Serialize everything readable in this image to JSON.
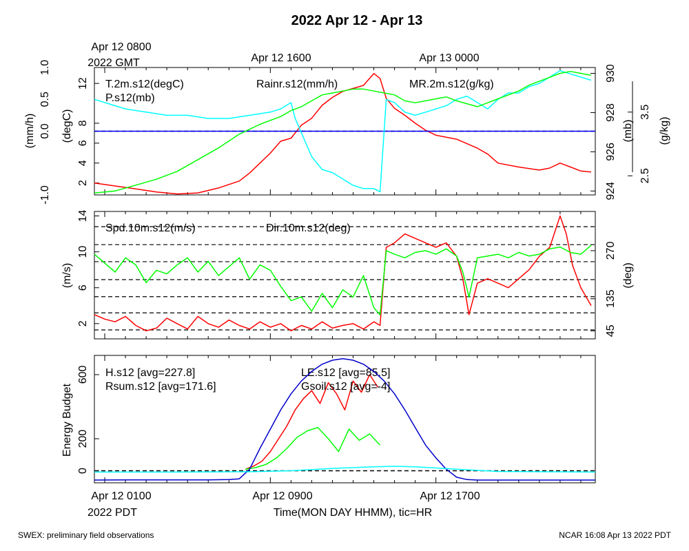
{
  "title": "2022 Apr 12 - Apr 13",
  "top_axis": {
    "labels": [
      "Apr 12 0800",
      "Apr 12 1600",
      "Apr 13 0000"
    ],
    "sublabel": "2022 GMT"
  },
  "bottom_axis": {
    "labels": [
      "Apr 12 0100",
      "Apr 12 0900",
      "Apr 12 1700"
    ],
    "sublabel": "2022 PDT",
    "title": "Time(MON DAY HHMM), tic=HR"
  },
  "footer": {
    "left": "SWEX: preliminary field observations",
    "right": "NCAR 16:08 Apr 13 2022 PDT"
  },
  "chart_data": [
    {
      "type": "line",
      "panel": "top",
      "x_unit": "hours since Apr 12 0000 PDT",
      "xlim": [
        0.5,
        24.7
      ],
      "axes": {
        "rain": {
          "label": "(mm/h)",
          "ylim": [
            -1.0,
            1.0
          ],
          "ticks": [
            -1.0,
            0.0,
            0.5,
            1.0
          ],
          "tick_labels": [
            "-1.0",
            "0.0",
            "0.5",
            "1.0"
          ]
        },
        "temp": {
          "label": "(degC)",
          "ylim": [
            0.8,
            13.6
          ],
          "ticks": [
            2,
            4,
            6,
            8,
            12
          ],
          "tick_labels": [
            "2",
            "4",
            "6",
            "8",
            "12"
          ]
        },
        "pres": {
          "label": "(mb)",
          "ylim": [
            923.8,
            930.3
          ],
          "ticks": [
            924,
            926,
            928,
            930
          ],
          "tick_labels": [
            "924",
            "926",
            "928",
            "930"
          ]
        },
        "mr": {
          "label": "(g/kg)",
          "ylim": [
            2.2,
            4.2
          ],
          "ticks": [
            2.5,
            3.5
          ],
          "tick_labels": [
            "2.5",
            "3.5"
          ]
        }
      },
      "series": [
        {
          "name": "T.2m.s12(degC)",
          "color": "#ff0000",
          "axis": "temp",
          "x": [
            0.5,
            1.5,
            2.5,
            3.5,
            4.5,
            5.5,
            6.5,
            7.5,
            8.0,
            8.5,
            9.0,
            9.5,
            10.0,
            10.5,
            11.0,
            11.5,
            12.0,
            12.5,
            13.0,
            13.5,
            14.0,
            14.3,
            14.6,
            15.0,
            15.5,
            16.0,
            16.5,
            17.0,
            18.0,
            19.0,
            19.5,
            20.0,
            21.0,
            22.0,
            22.5,
            23.0,
            23.5,
            24.0,
            24.5
          ],
          "values": [
            2.0,
            1.7,
            1.4,
            1.1,
            0.9,
            1.0,
            1.5,
            2.2,
            3.0,
            4.0,
            5.0,
            6.2,
            6.5,
            7.8,
            8.5,
            9.8,
            10.6,
            11.2,
            11.5,
            11.8,
            13.0,
            12.5,
            10.5,
            9.5,
            8.8,
            8.0,
            7.3,
            6.8,
            6.4,
            5.5,
            4.9,
            4.0,
            3.6,
            3.3,
            3.5,
            4.0,
            3.6,
            3.2,
            3.1
          ]
        },
        {
          "name": "Rainr.s12(mm/h)",
          "color": "#0000ff",
          "axis": "rain",
          "x": [
            0.5,
            24.7
          ],
          "values": [
            0.0,
            0.0
          ]
        },
        {
          "name": "MR.2m.s12(g/kg)",
          "color": "#00ffff",
          "axis": "mr",
          "x": [
            0.5,
            1.5,
            2.0,
            3.0,
            4.0,
            5.0,
            6.0,
            7.0,
            8.0,
            9.0,
            9.5,
            10.0,
            10.2,
            10.6,
            11.0,
            11.5,
            12.0,
            12.5,
            13.0,
            13.5,
            14.0,
            14.3,
            14.6,
            15.0,
            15.5,
            16.0,
            16.5,
            17.0,
            17.5,
            18.0,
            18.5,
            19.0,
            19.5,
            20.0,
            20.5,
            21.0,
            21.5,
            22.0,
            22.5,
            23.0,
            23.5,
            24.0,
            24.5
          ],
          "values": [
            3.7,
            3.6,
            3.55,
            3.5,
            3.45,
            3.45,
            3.4,
            3.4,
            3.45,
            3.5,
            3.55,
            3.65,
            3.4,
            3.1,
            2.8,
            2.6,
            2.55,
            2.45,
            2.35,
            2.3,
            2.3,
            2.25,
            3.7,
            3.65,
            3.5,
            3.45,
            3.5,
            3.55,
            3.6,
            3.7,
            3.75,
            3.65,
            3.55,
            3.7,
            3.8,
            3.8,
            3.9,
            3.95,
            4.05,
            4.15,
            4.1,
            4.05,
            4.0
          ]
        },
        {
          "name": "P.s12(mb)",
          "color": "#00ff00",
          "axis": "pres",
          "x": [
            0.5,
            1.5,
            2.5,
            3.5,
            4.5,
            5.5,
            6.5,
            7.5,
            8.5,
            9.5,
            10.0,
            10.5,
            11.0,
            11.5,
            12.0,
            12.5,
            13.0,
            13.5,
            14.0,
            14.5,
            15.0,
            15.5,
            16.0,
            16.5,
            17.0,
            17.5,
            18.0,
            19.0,
            19.5,
            20.0,
            20.5,
            21.0,
            21.5,
            22.0,
            22.5,
            23.0,
            23.5,
            24.0,
            24.5
          ],
          "values": [
            923.9,
            924.0,
            924.3,
            924.6,
            925.0,
            925.6,
            926.2,
            926.9,
            927.4,
            927.8,
            928.1,
            928.3,
            928.6,
            928.9,
            929.0,
            929.1,
            929.2,
            929.2,
            929.1,
            929.0,
            928.9,
            928.6,
            928.5,
            928.6,
            928.7,
            928.8,
            928.6,
            928.3,
            928.5,
            928.7,
            928.9,
            929.1,
            929.4,
            929.6,
            929.8,
            930.0,
            930.1,
            930.0,
            929.9
          ]
        }
      ],
      "reference_lines": [
        {
          "axis": "rain",
          "value": 0.0,
          "style": "dashed"
        }
      ]
    },
    {
      "type": "line",
      "panel": "middle",
      "x_unit": "hours since Apr 12 0000 PDT",
      "xlim": [
        0.5,
        24.7
      ],
      "axes": {
        "spd": {
          "label": "(m/s)",
          "ylim": [
            0.3,
            14.5
          ],
          "ticks": [
            2,
            6,
            10,
            14
          ],
          "tick_labels": [
            "2",
            "6",
            "10",
            "14"
          ]
        },
        "dir": {
          "label": "(deg)",
          "ylim": [
            22.5,
            380
          ],
          "ticks": [
            45,
            135,
            270
          ],
          "tick_labels": [
            "45",
            "135",
            "270"
          ]
        }
      },
      "dashed_grid_spd": [
        1.3,
        3.2,
        5.0,
        6.9,
        8.9,
        10.8,
        12.8
      ],
      "series": [
        {
          "name": "Spd.10m.s12(m/s)",
          "color": "#ff0000",
          "axis": "spd",
          "x": [
            0.5,
            1.0,
            1.5,
            2.0,
            2.5,
            3.0,
            3.5,
            4.0,
            4.5,
            5.0,
            5.5,
            6.0,
            6.5,
            7.0,
            7.5,
            8.0,
            8.5,
            9.0,
            9.5,
            10.0,
            10.5,
            11.0,
            11.5,
            12.0,
            12.5,
            13.0,
            13.5,
            14.0,
            14.3,
            14.6,
            15.0,
            15.5,
            16.0,
            16.5,
            17.0,
            17.5,
            18.0,
            18.3,
            18.6,
            19.0,
            19.5,
            20.0,
            20.5,
            21.0,
            21.5,
            22.0,
            22.5,
            23.0,
            23.3,
            23.6,
            24.0,
            24.5
          ],
          "values": [
            3.0,
            2.5,
            2.2,
            2.8,
            1.8,
            1.2,
            1.5,
            2.6,
            2.0,
            1.4,
            2.8,
            2.0,
            1.6,
            2.4,
            1.8,
            1.4,
            2.2,
            1.6,
            2.0,
            1.2,
            1.8,
            1.4,
            2.2,
            1.5,
            1.8,
            2.0,
            1.4,
            2.2,
            1.8,
            10.5,
            11.0,
            12.0,
            11.5,
            11.0,
            10.5,
            11.0,
            9.5,
            7.0,
            3.0,
            6.5,
            7.0,
            6.5,
            6.0,
            7.0,
            8.0,
            9.5,
            10.5,
            14.0,
            12.0,
            8.5,
            6.0,
            4.0
          ]
        },
        {
          "name": "Dir.10m.s12(deg)",
          "color": "#00ff00",
          "axis": "dir",
          "x": [
            0.5,
            1.0,
            1.5,
            2.0,
            2.5,
            3.0,
            3.5,
            4.0,
            4.5,
            5.0,
            5.5,
            6.0,
            6.5,
            7.0,
            7.5,
            8.0,
            8.5,
            9.0,
            9.5,
            10.0,
            10.5,
            11.0,
            11.5,
            12.0,
            12.5,
            13.0,
            13.5,
            14.0,
            14.3,
            14.6,
            15.0,
            15.5,
            16.0,
            16.5,
            17.0,
            17.5,
            18.0,
            18.3,
            18.6,
            19.0,
            19.5,
            20.0,
            20.5,
            21.0,
            21.5,
            22.0,
            22.5,
            23.0,
            23.5,
            24.0,
            24.5
          ],
          "values": [
            260,
            235,
            210,
            250,
            230,
            180,
            215,
            205,
            230,
            250,
            210,
            240,
            200,
            225,
            250,
            190,
            230,
            215,
            170,
            130,
            140,
            100,
            150,
            110,
            160,
            140,
            200,
            110,
            90,
            270,
            260,
            250,
            265,
            270,
            260,
            275,
            255,
            210,
            140,
            250,
            255,
            260,
            250,
            265,
            255,
            260,
            275,
            280,
            265,
            260,
            285
          ]
        }
      ]
    },
    {
      "type": "line",
      "panel": "bottom",
      "x_unit": "hours since Apr 12 0000 PDT",
      "xlim": [
        0.5,
        24.7
      ],
      "axes": {
        "e": {
          "label": "Energy Budget",
          "ylim": [
            -75,
            720
          ],
          "ticks": [
            0,
            200,
            600
          ],
          "tick_labels": [
            "0",
            "200",
            "600"
          ]
        }
      },
      "series": [
        {
          "name": "H.s12 [avg=227.8]",
          "color": "#ff0000",
          "axis": "e",
          "x": [
            7.8,
            8.2,
            8.6,
            9.0,
            9.4,
            9.8,
            10.2,
            10.6,
            11.0,
            11.4,
            11.8,
            12.2,
            12.6,
            13.0,
            13.4,
            13.8,
            14.2
          ],
          "values": [
            10,
            30,
            60,
            120,
            200,
            280,
            380,
            450,
            500,
            420,
            550,
            480,
            380,
            560,
            490,
            600,
            520
          ]
        },
        {
          "name": "LE.s12 [avg=85.5]",
          "color": "#00ff00",
          "axis": "e",
          "x": [
            7.8,
            8.3,
            8.8,
            9.3,
            9.8,
            10.3,
            10.8,
            11.3,
            11.8,
            12.3,
            12.8,
            13.3,
            13.8,
            14.3
          ],
          "values": [
            10,
            20,
            40,
            80,
            140,
            210,
            250,
            270,
            200,
            120,
            260,
            190,
            230,
            160
          ]
        },
        {
          "name": "Rsum.s12 [avg=171.6]",
          "color": "#0000cc",
          "axis": "e",
          "x": [
            0.5,
            2.0,
            4.0,
            6.0,
            7.0,
            7.5,
            8.0,
            8.5,
            9.0,
            9.5,
            10.0,
            10.5,
            11.0,
            11.5,
            12.0,
            12.5,
            13.0,
            13.5,
            14.0,
            14.5,
            15.0,
            15.5,
            16.0,
            16.5,
            17.0,
            17.5,
            18.0,
            18.5,
            19.0,
            20.0,
            22.0,
            24.7
          ],
          "values": [
            -58,
            -57,
            -57,
            -57,
            -55,
            -50,
            10,
            140,
            260,
            380,
            480,
            560,
            620,
            665,
            690,
            700,
            690,
            665,
            620,
            560,
            480,
            380,
            270,
            160,
            80,
            10,
            -40,
            -55,
            -58,
            -58,
            -58,
            -58
          ]
        },
        {
          "name": "Gsoil.s12 [avg=-4]",
          "color": "#00ffff",
          "axis": "e",
          "x": [
            0.5,
            4.0,
            8.0,
            10.0,
            12.0,
            14.0,
            15.0,
            16.0,
            18.0,
            20.0,
            24.7
          ],
          "values": [
            -8,
            -8,
            -6,
            0,
            15,
            25,
            28,
            25,
            10,
            -4,
            -8
          ]
        }
      ],
      "reference_lines": [
        {
          "axis": "e",
          "value": 0,
          "style": "dashed"
        }
      ]
    }
  ]
}
